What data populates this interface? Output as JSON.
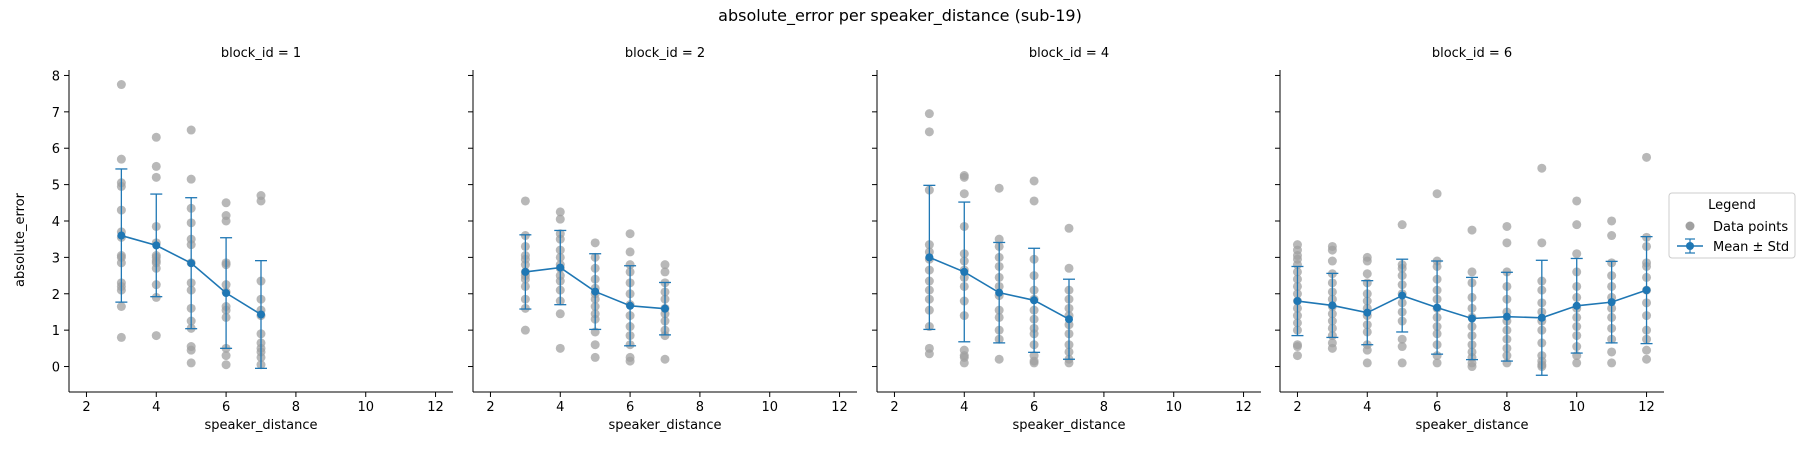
{
  "figure": {
    "title": "absolute_error per speaker_distance (sub-19)",
    "ylabel": "absolute_error",
    "xlabel": "speaker_distance"
  },
  "legend": {
    "title": "Legend",
    "items": [
      "Data points",
      "Mean ± Std"
    ],
    "placement": "right"
  },
  "colors": {
    "points": "#a0a0a0",
    "mean": "#1f77b4"
  },
  "chart_data": [
    {
      "type": "scatter",
      "title": "block_id = 1",
      "xlabel": "speaker_distance",
      "ylabel": "absolute_error",
      "xlim": [
        1.5,
        12.5
      ],
      "ylim": [
        -0.7,
        8.15
      ],
      "xticks": [
        2,
        4,
        6,
        8,
        10,
        12
      ],
      "yticks": [
        0,
        1,
        2,
        3,
        4,
        5,
        6,
        7,
        8
      ],
      "points": {
        "3": [
          7.75,
          5.7,
          5.05,
          4.95,
          4.3,
          3.7,
          3.55,
          3.05,
          3.0,
          2.85,
          2.3,
          2.2,
          2.1,
          1.65,
          0.8
        ],
        "4": [
          6.3,
          5.5,
          5.2,
          3.85,
          3.4,
          3.05,
          3.0,
          2.9,
          2.85,
          2.7,
          2.25,
          1.9,
          0.85
        ],
        "5": [
          6.5,
          5.15,
          4.35,
          3.95,
          3.5,
          3.35,
          2.85,
          2.3,
          2.1,
          1.6,
          1.25,
          1.05,
          0.55,
          0.45,
          0.1
        ],
        "6": [
          4.5,
          4.15,
          4.0,
          2.85,
          2.8,
          2.25,
          2.05,
          1.65,
          1.55,
          1.35,
          0.5,
          0.3,
          0.05
        ],
        "7": [
          4.7,
          4.55,
          2.35,
          1.85,
          1.55,
          1.4,
          0.9,
          0.65,
          0.5,
          0.4,
          0.25,
          0.05
        ]
      },
      "mean": [
        [
          3,
          3.6
        ],
        [
          4,
          3.33
        ],
        [
          5,
          2.84
        ],
        [
          6,
          2.02
        ],
        [
          7,
          1.43
        ]
      ],
      "std": [
        1.83,
        1.41,
        1.8,
        1.52,
        1.48
      ]
    },
    {
      "type": "scatter",
      "title": "block_id = 2",
      "xlabel": "speaker_distance",
      "xlim": [
        1.5,
        12.5
      ],
      "ylim": [
        -0.7,
        8.15
      ],
      "xticks": [
        2,
        4,
        6,
        8,
        10,
        12
      ],
      "points": {
        "3": [
          4.55,
          3.6,
          3.3,
          3.05,
          2.95,
          2.8,
          2.6,
          2.5,
          2.4,
          2.2,
          1.85,
          1.6,
          1.0
        ],
        "4": [
          4.25,
          4.05,
          3.65,
          3.5,
          3.2,
          3.0,
          2.8,
          2.7,
          2.5,
          2.35,
          2.1,
          1.8,
          1.45,
          0.5
        ],
        "5": [
          3.4,
          3.0,
          2.7,
          2.4,
          2.15,
          2.0,
          1.85,
          1.65,
          1.45,
          1.3,
          0.95,
          0.6,
          0.25
        ],
        "6": [
          3.65,
          3.15,
          2.8,
          2.6,
          2.3,
          2.0,
          1.7,
          1.4,
          1.1,
          0.85,
          0.6,
          0.25,
          0.15
        ],
        "7": [
          2.8,
          2.6,
          2.3,
          2.05,
          1.85,
          1.6,
          1.45,
          1.25,
          1.0,
          0.85,
          0.2
        ]
      },
      "mean": [
        [
          3,
          2.6
        ],
        [
          4,
          2.72
        ],
        [
          5,
          2.06
        ],
        [
          6,
          1.67
        ],
        [
          7,
          1.59
        ]
      ],
      "std": [
        1.02,
        1.02,
        1.04,
        1.1,
        0.72
      ]
    },
    {
      "type": "scatter",
      "title": "block_id = 4",
      "xlabel": "speaker_distance",
      "xlim": [
        1.5,
        12.5
      ],
      "ylim": [
        -0.7,
        8.15
      ],
      "xticks": [
        2,
        4,
        6,
        8,
        10,
        12
      ],
      "points": {
        "3": [
          6.95,
          6.45,
          4.85,
          3.35,
          3.15,
          2.95,
          2.65,
          2.35,
          2.1,
          1.85,
          1.55,
          1.1,
          0.5,
          0.35
        ],
        "4": [
          5.25,
          5.2,
          4.75,
          3.85,
          3.1,
          2.9,
          2.65,
          2.45,
          2.2,
          1.8,
          1.4,
          0.45,
          0.3,
          0.25,
          0.1
        ],
        "5": [
          4.9,
          3.5,
          3.3,
          3.0,
          2.75,
          2.45,
          2.2,
          1.95,
          1.55,
          1.35,
          1.0,
          0.75,
          0.2
        ],
        "6": [
          5.1,
          4.55,
          2.95,
          2.5,
          2.1,
          1.85,
          1.55,
          1.3,
          1.05,
          0.9,
          0.6,
          0.3,
          0.15,
          0.1
        ],
        "7": [
          3.8,
          2.7,
          2.1,
          1.85,
          1.6,
          1.4,
          1.15,
          0.9,
          0.6,
          0.4,
          0.2,
          0.1
        ]
      },
      "mean": [
        [
          3,
          3.0
        ],
        [
          4,
          2.6
        ],
        [
          5,
          2.03
        ],
        [
          6,
          1.82
        ],
        [
          7,
          1.3
        ]
      ],
      "std": [
        1.98,
        1.92,
        1.38,
        1.43,
        1.1
      ]
    },
    {
      "type": "scatter",
      "title": "block_id = 6",
      "xlabel": "speaker_distance",
      "xlim": [
        1.5,
        12.5
      ],
      "ylim": [
        -0.7,
        8.15
      ],
      "xticks": [
        2,
        4,
        6,
        8,
        10,
        12
      ],
      "points": {
        "2": [
          3.35,
          3.2,
          3.05,
          2.95,
          2.8,
          2.6,
          2.4,
          2.2,
          2.0,
          1.8,
          1.6,
          1.4,
          1.2,
          1.0,
          0.6,
          0.55,
          0.3
        ],
        "3": [
          3.3,
          3.2,
          2.9,
          2.55,
          2.3,
          2.05,
          1.85,
          1.65,
          1.45,
          1.25,
          1.05,
          0.85,
          0.65,
          0.5
        ],
        "4": [
          3.0,
          2.9,
          2.55,
          2.3,
          2.0,
          1.8,
          1.6,
          1.4,
          1.15,
          0.95,
          0.6,
          0.45,
          0.1
        ],
        "5": [
          3.9,
          2.8,
          2.7,
          2.5,
          2.25,
          2.0,
          1.75,
          1.5,
          1.25,
          0.75,
          0.55,
          0.1
        ],
        "6": [
          4.75,
          2.9,
          2.75,
          2.4,
          2.1,
          1.85,
          1.6,
          1.35,
          1.1,
          0.9,
          0.6,
          0.3,
          0.1
        ],
        "7": [
          3.75,
          2.6,
          2.3,
          1.9,
          1.6,
          1.35,
          1.1,
          0.85,
          0.6,
          0.4,
          0.25,
          0.1,
          0.0
        ],
        "8": [
          3.85,
          3.4,
          2.6,
          2.2,
          1.85,
          1.5,
          1.25,
          1.0,
          0.75,
          0.5,
          0.3,
          0.1
        ],
        "9": [
          5.45,
          3.4,
          2.35,
          2.1,
          1.75,
          1.5,
          1.25,
          1.0,
          0.65,
          0.3,
          0.15,
          0.05,
          0.0
        ],
        "10": [
          4.55,
          3.9,
          3.1,
          2.6,
          2.2,
          1.9,
          1.6,
          1.35,
          1.1,
          0.85,
          0.55,
          0.3,
          0.1
        ],
        "11": [
          4.0,
          3.6,
          2.85,
          2.5,
          2.2,
          1.9,
          1.6,
          1.35,
          1.05,
          0.75,
          0.4,
          0.1
        ],
        "12": [
          5.75,
          3.55,
          3.3,
          2.85,
          2.75,
          2.45,
          2.1,
          1.75,
          1.4,
          1.0,
          0.75,
          0.45,
          0.2
        ]
      },
      "mean": [
        [
          2,
          1.8
        ],
        [
          3,
          1.68
        ],
        [
          4,
          1.48
        ],
        [
          5,
          1.95
        ],
        [
          6,
          1.62
        ],
        [
          7,
          1.32
        ],
        [
          8,
          1.37
        ],
        [
          9,
          1.34
        ],
        [
          10,
          1.67
        ],
        [
          11,
          1.77
        ],
        [
          12,
          2.1
        ]
      ],
      "std": [
        0.95,
        0.88,
        0.88,
        1.0,
        1.28,
        1.13,
        1.22,
        1.58,
        1.3,
        1.12,
        1.47
      ]
    }
  ]
}
